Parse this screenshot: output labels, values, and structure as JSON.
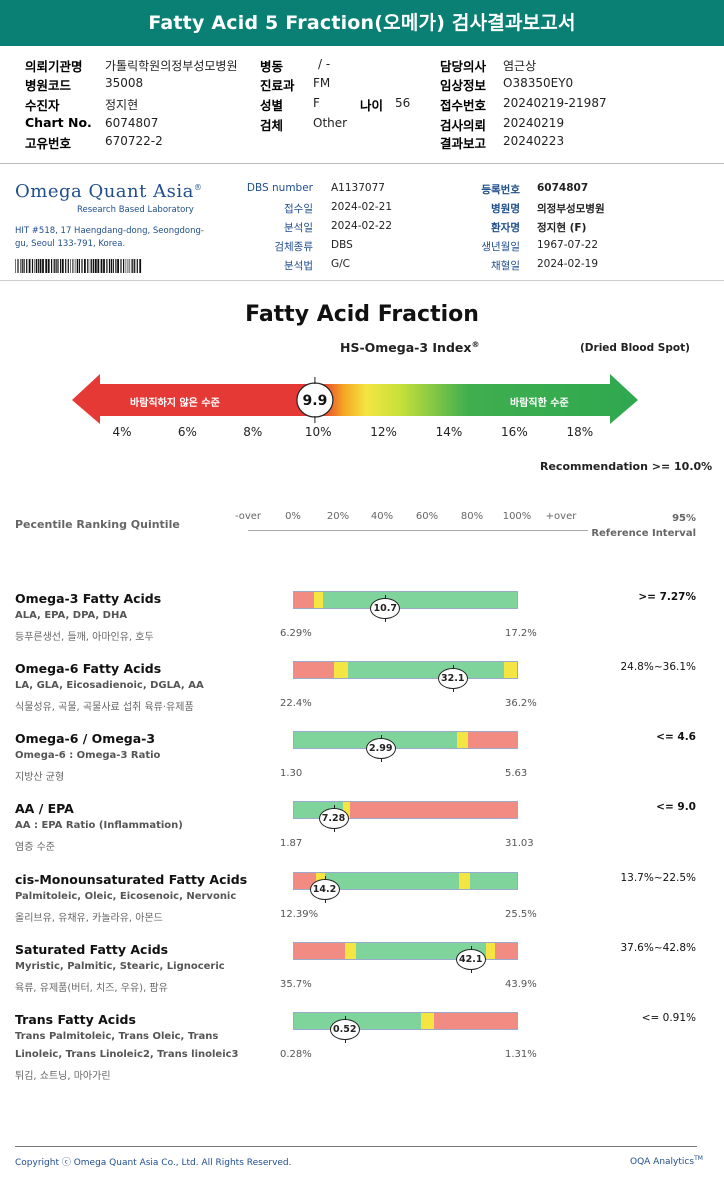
{
  "title": "Fatty Acid 5 Fraction(오메가) 검사결과보고서",
  "header": {
    "col1": [
      {
        "label": "의뢰기관명",
        "value": "가톨릭학원의정부성모병원"
      },
      {
        "label": "병원코드",
        "value": "35008"
      },
      {
        "label": "수진자",
        "value": "정지현"
      },
      {
        "label": "Chart No.",
        "value": "6074807"
      },
      {
        "label": "고유번호",
        "value": "670722-2"
      }
    ],
    "col2": [
      {
        "label": "병동",
        "value": "/ -"
      },
      {
        "label": "진료과",
        "value": "FM"
      },
      {
        "label": "성별",
        "value": "F"
      },
      {
        "label": "검체",
        "value": "Other"
      }
    ],
    "age_label": "나이",
    "age_value": "56",
    "col3": [
      {
        "label": "담당의사",
        "value": "염근상"
      },
      {
        "label": "임상정보",
        "value": "O38350EY0"
      },
      {
        "label": "접수번호",
        "value": "20240219-21987"
      },
      {
        "label": "검사의뢰",
        "value": "20240219"
      },
      {
        "label": "결과보고",
        "value": "20240223"
      }
    ]
  },
  "lab": {
    "name_main": "Omega Quant Asia",
    "reg": "®",
    "sub": "Research Based Laboratory",
    "address": "HIT #518, 17 Haengdang-dong, Seongdong-gu, Seoul 133-791, Korea.",
    "sample_left": [
      {
        "label": "DBS number",
        "value": "A1137077"
      },
      {
        "label": "접수일",
        "value": "2024-02-21"
      },
      {
        "label": "분석일",
        "value": "2024-02-22"
      },
      {
        "label": "검체종류",
        "value": "DBS"
      },
      {
        "label": "분석법",
        "value": "G/C"
      }
    ],
    "sample_right": [
      {
        "label": "등록번호",
        "value": "6074807",
        "bold": true
      },
      {
        "label": "병원명",
        "value": "의정부성모병원",
        "bold": true
      },
      {
        "label": "환자명",
        "value": "정지현 (F)",
        "bold": true
      },
      {
        "label": "생년월일",
        "value": "1967-07-22",
        "bold": false
      },
      {
        "label": "채혈일",
        "value": "2024-02-19",
        "bold": false
      }
    ]
  },
  "index": {
    "title": "Fatty Acid Fraction",
    "subtitle": "HS-Omega-3 Index",
    "reg": "®",
    "specimen": "(Dried Blood Spot)",
    "value": "9.9",
    "value_num": 9.9,
    "bad_label": "바람직하지 않은 수준",
    "good_label": "바람직한 수준",
    "ticks": [
      "4%",
      "6%",
      "8%",
      "10%",
      "12%",
      "14%",
      "16%",
      "18%"
    ],
    "recommendation": "Recommendation  >= 10.0%",
    "colors": {
      "bad": "#e8393a",
      "mid": "#f5a623",
      "good": "#2fa84f"
    }
  },
  "table": {
    "heading": "Pecentile Ranking Quintile",
    "scale": [
      "-over",
      "0%",
      "20%",
      "40%",
      "60%",
      "80%",
      "100%",
      "+over"
    ],
    "ref_heading_1": "95%",
    "ref_heading_2": "Reference Interval",
    "rows": [
      {
        "name": "Omega-3 Fatty Acids",
        "sub": [
          "ALA, EPA, DPA, DHA"
        ],
        "kr": "등푸른생선, 들깨, 아마인유, 호두",
        "ref": ">= 7.27%",
        "ref_bold": true,
        "min": "6.29%",
        "max": "17.2%",
        "value": "10.7",
        "marker_fraction": 0.41,
        "segments": [
          {
            "c": "#f28b82",
            "w": 0.09
          },
          {
            "c": "#f4e542",
            "w": 0.04
          },
          {
            "c": "#7ed49b",
            "w": 0.87
          }
        ]
      },
      {
        "name": "Omega-6 Fatty Acids",
        "sub": [
          "LA, GLA, Eicosadienoic, DGLA, AA"
        ],
        "kr": "식물성유, 곡물, 곡물사료 섭취 육류·유제품",
        "ref": "24.8%~36.1%",
        "ref_bold": false,
        "min": "22.4%",
        "max": "36.2%",
        "value": "32.1",
        "marker_fraction": 0.71,
        "segments": [
          {
            "c": "#f28b82",
            "w": 0.18
          },
          {
            "c": "#f4e542",
            "w": 0.06
          },
          {
            "c": "#7ed49b",
            "w": 0.7
          },
          {
            "c": "#f4e542",
            "w": 0.06
          }
        ]
      },
      {
        "name": "Omega-6 / Omega-3",
        "sub": [
          "Omega-6 : Omega-3 Ratio"
        ],
        "kr": "지방산 균형",
        "ref": "<= 4.6",
        "ref_bold": true,
        "min": "1.30",
        "max": "5.63",
        "value": "2.99",
        "marker_fraction": 0.39,
        "segments": [
          {
            "c": "#7ed49b",
            "w": 0.73
          },
          {
            "c": "#f4e542",
            "w": 0.05
          },
          {
            "c": "#f28b82",
            "w": 0.22
          }
        ]
      },
      {
        "name": "AA / EPA",
        "sub": [
          "AA : EPA Ratio (Inflammation)"
        ],
        "kr": "염증 수준",
        "ref": "<= 9.0",
        "ref_bold": true,
        "min": "1.87",
        "max": "31.03",
        "value": "7.28",
        "marker_fraction": 0.18,
        "segments": [
          {
            "c": "#7ed49b",
            "w": 0.22
          },
          {
            "c": "#f4e542",
            "w": 0.03
          },
          {
            "c": "#f28b82",
            "w": 0.75
          }
        ]
      },
      {
        "name": "cis-Monounsaturated Fatty Acids",
        "sub": [
          "Palmitoleic, Oleic, Eicosenoic, Nervonic"
        ],
        "kr": "올리브유, 유채유, 카놀라유, 아몬드",
        "ref": "13.7%~22.5%",
        "ref_bold": false,
        "min": "12.39%",
        "max": "25.5%",
        "value": "14.2",
        "marker_fraction": 0.14,
        "segments": [
          {
            "c": "#f28b82",
            "w": 0.1
          },
          {
            "c": "#f4e542",
            "w": 0.04
          },
          {
            "c": "#7ed49b",
            "w": 0.6
          },
          {
            "c": "#f4e542",
            "w": 0.05
          },
          {
            "c": "#7ed49b",
            "w": 0.21
          }
        ]
      },
      {
        "name": "Saturated Fatty Acids",
        "sub": [
          "Myristic, Palmitic, Stearic, Lignoceric"
        ],
        "kr": "육류, 유제품(버터, 치즈, 우유), 팜유",
        "ref": "37.6%~42.8%",
        "ref_bold": false,
        "min": "35.7%",
        "max": "43.9%",
        "value": "42.1",
        "marker_fraction": 0.79,
        "segments": [
          {
            "c": "#f28b82",
            "w": 0.23
          },
          {
            "c": "#f4e542",
            "w": 0.05
          },
          {
            "c": "#7ed49b",
            "w": 0.58
          },
          {
            "c": "#f4e542",
            "w": 0.04
          },
          {
            "c": "#f28b82",
            "w": 0.1
          }
        ]
      },
      {
        "name": "Trans Fatty Acids",
        "sub": [
          "Trans Palmitoleic, Trans Oleic, Trans",
          "Linoleic, Trans Linoleic2, Trans linoleic3"
        ],
        "kr": "튀김, 쇼트닝, 마아가린",
        "ref": "<= 0.91%",
        "ref_bold": false,
        "min": "0.28%",
        "max": "1.31%",
        "value": "0.52",
        "marker_fraction": 0.23,
        "segments": [
          {
            "c": "#7ed49b",
            "w": 0.57
          },
          {
            "c": "#f4e542",
            "w": 0.06
          },
          {
            "c": "#f28b82",
            "w": 0.37
          }
        ]
      }
    ]
  },
  "footer": {
    "copyright": "Copyright ⓒ Omega Quant Asia Co., Ltd.  All Rights Reserved.",
    "brand": "OQA Analytics",
    "brand_tm": "TM"
  }
}
